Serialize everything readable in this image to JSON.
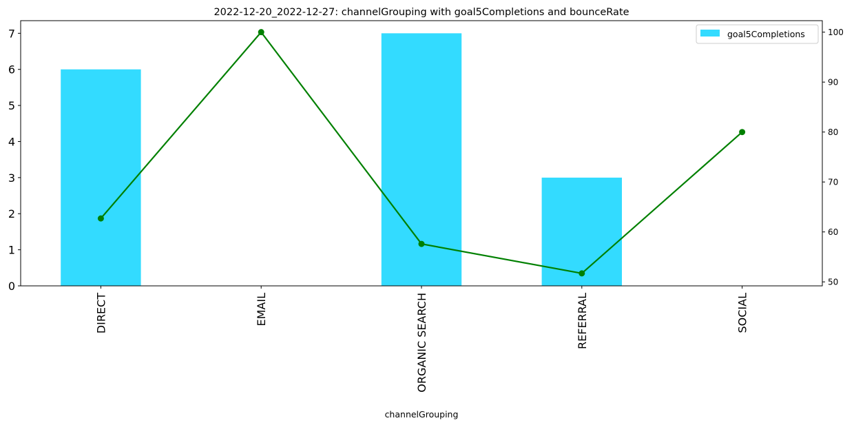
{
  "chart_data": {
    "type": "bar",
    "title": "2022-12-20_2022-12-27: channelGrouping with goal5Completions and bounceRate",
    "xlabel": "channelGrouping",
    "ylabel": "",
    "categories": [
      "DIRECT",
      "EMAIL",
      "ORGANIC SEARCH",
      "REFERRAL",
      "SOCIAL"
    ],
    "series": [
      {
        "name": "goal5Completions",
        "type": "bar",
        "axis": "left",
        "color": "#33DBFF",
        "values": [
          6,
          0,
          7,
          3,
          0
        ]
      },
      {
        "type": "line",
        "axis": "right",
        "color": "#008000",
        "marker": "circle",
        "values": [
          62.7,
          100,
          57.6,
          51.7,
          80
        ]
      }
    ],
    "left_axis": {
      "ylim": [
        0,
        7.35
      ],
      "ticks": [
        0,
        1,
        2,
        3,
        4,
        5,
        6,
        7
      ]
    },
    "right_axis": {
      "ylim": [
        49.2,
        102.3
      ],
      "ticks": [
        50,
        60,
        70,
        80,
        90,
        100
      ]
    },
    "legend": {
      "placement": "top-right",
      "entries": [
        "goal5Completions"
      ]
    },
    "grid": false
  }
}
